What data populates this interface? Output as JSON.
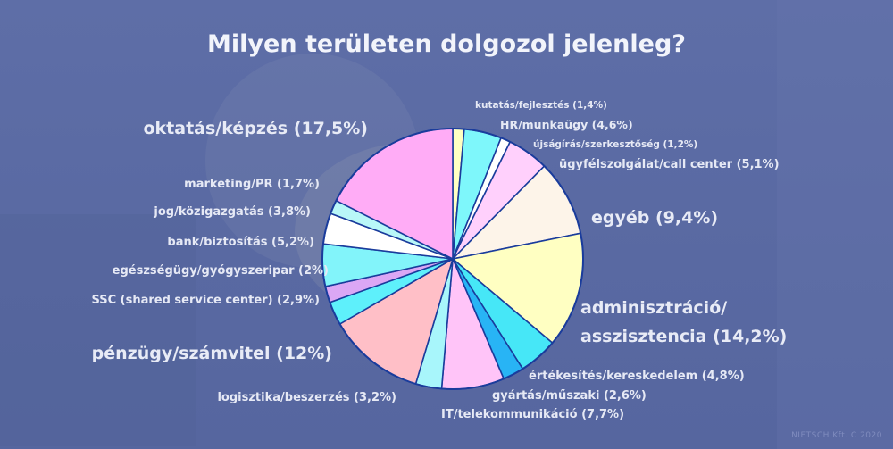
{
  "title": "Milyen területen dolgozol jelenleg?",
  "credit": "NIETSCH Kft. C 2020",
  "colors": {
    "background": "#5c6ca5",
    "outline": "#1a3c9c",
    "label": "#e6e9f5"
  },
  "chart_data": {
    "type": "pie",
    "start_angle_deg": 90,
    "direction": "clockwise",
    "slices": [
      {
        "label": "kutatás/fejlesztés (1,4%)",
        "value": 1.4,
        "color": "#ffffc2"
      },
      {
        "label": "HR/munkaügy (4,6%)",
        "value": 4.6,
        "color": "#7ef7fb"
      },
      {
        "label": "újságírás/szerkesztőség (1,2%)",
        "value": 1.2,
        "color": "#ffffff"
      },
      {
        "label": "ügyfélszolgálat/call center (5,1%)",
        "value": 5.1,
        "color": "#ffd0fc"
      },
      {
        "label": "egyéb (9,4%)",
        "value": 9.4,
        "color": "#fdf4e9"
      },
      {
        "label": "adminisztráció/ asszisztencia  (14,2%)",
        "value": 14.2,
        "color": "#ffffc2"
      },
      {
        "label": "értékesítés/kereskedelem (4,8%)",
        "value": 4.8,
        "color": "#46e7f7"
      },
      {
        "label": "gyártás/műszaki (2,6%)",
        "value": 2.6,
        "color": "#28b4f5"
      },
      {
        "label": "IT/telekommunikáció (7,7%)",
        "value": 7.7,
        "color": "#ffc4f8"
      },
      {
        "label": "logisztika/beszerzés (3,2%)",
        "value": 3.2,
        "color": "#a8f6fb"
      },
      {
        "label": "pénzügy/számvitel (12%)",
        "value": 12,
        "color": "#ffbfc7"
      },
      {
        "label": "SSC (shared service center) (2,9%)",
        "value": 2.9,
        "color": "#5ef0fb"
      },
      {
        "label": "egészségügy/gyógyszeripar (2%)",
        "value": 2,
        "color": "#dba7f5"
      },
      {
        "label": "bank/biztosítás (5,2%)",
        "value": 5.2,
        "color": "#82f4fa"
      },
      {
        "label": "jog/közigazgatás (3,8%)",
        "value": 3.8,
        "color": "#ffffff"
      },
      {
        "label": "marketing/PR (1,7%)",
        "value": 1.7,
        "color": "#b9f7f8"
      },
      {
        "label": "oktatás/képzés (17,5%)",
        "value": 17.5,
        "color": "#ffacf6"
      }
    ]
  }
}
